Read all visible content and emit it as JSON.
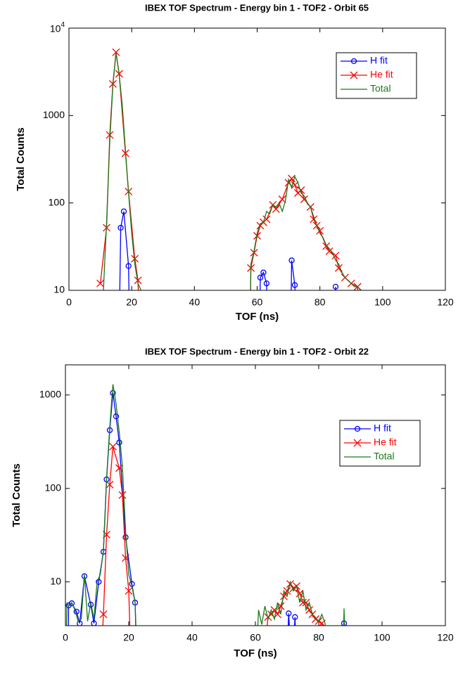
{
  "chart_data": [
    {
      "type": "line",
      "title": "IBEX TOF Spectrum - Energy bin 1 - TOF2 - Orbit 65",
      "x_label": "TOF (ns)",
      "y_label": "Total Counts",
      "log_y": true,
      "legend": "upper right",
      "xlim": [
        0,
        120
      ],
      "xticks": [
        0,
        20,
        40,
        60,
        80,
        100,
        120
      ],
      "ylim": [
        10,
        10000
      ],
      "yticks": [
        10,
        100,
        1000,
        {
          "value": 10000,
          "label": "10^4"
        }
      ],
      "series": [
        {
          "name": "H fit",
          "color": "#0000ff",
          "marker": "o",
          "x": [
            15.8,
            16.5,
            17.5,
            19,
            19.6,
            60.5,
            61,
            62,
            63,
            63.8,
            70.5,
            71,
            72,
            72.8,
            84.5,
            85,
            85.5
          ],
          "values": [
            1,
            52,
            80,
            19,
            1,
            1,
            14,
            16,
            12,
            1,
            1,
            22,
            11.5,
            1,
            1,
            11,
            1
          ]
        },
        {
          "name": "He fit",
          "color": "#ff0000",
          "marker": "x",
          "x": [
            10,
            12,
            13,
            14,
            15,
            16,
            18,
            19,
            21,
            22,
            23,
            57.5,
            58,
            59,
            60,
            61,
            62,
            63,
            65,
            66,
            68,
            70,
            71,
            72,
            73,
            74,
            75,
            77,
            78,
            79,
            80,
            82,
            83,
            85,
            86,
            88,
            90,
            92,
            93
          ],
          "values": [
            12,
            52,
            600,
            2300,
            5300,
            3000,
            370,
            135,
            23,
            13,
            1,
            1,
            18,
            27,
            42,
            55,
            60,
            65,
            95,
            85,
            110,
            170,
            190,
            160,
            130,
            140,
            110,
            90,
            65,
            55,
            48,
            32,
            28,
            25,
            18,
            14,
            12,
            11,
            1
          ]
        },
        {
          "name": "Total",
          "color": "#1a7a1a",
          "marker": "none",
          "x": [
            11,
            12,
            13,
            14,
            15,
            16,
            17,
            18,
            19,
            20,
            21,
            22,
            23,
            57.5,
            58,
            59,
            60,
            61,
            62,
            63,
            64,
            65,
            66,
            67,
            68,
            69,
            70,
            71,
            72,
            73,
            74,
            75,
            76,
            77,
            78,
            79,
            80,
            81,
            82,
            83,
            84,
            85,
            86,
            87,
            88,
            89,
            90,
            91,
            92,
            93,
            94
          ],
          "values": [
            10,
            60,
            500,
            2200,
            5200,
            3000,
            1300,
            400,
            130,
            45,
            20,
            12,
            10,
            1,
            20,
            28,
            45,
            58,
            60,
            80,
            75,
            95,
            90,
            100,
            80,
            105,
            185,
            150,
            200,
            170,
            130,
            120,
            100,
            90,
            70,
            55,
            45,
            40,
            33,
            30,
            27,
            22,
            20,
            16,
            14,
            13,
            12,
            11,
            11,
            10,
            1
          ]
        }
      ]
    },
    {
      "type": "line",
      "title": "IBEX TOF Spectrum - Energy bin 1 - TOF2 - Orbit 22",
      "x_label": "TOF (ns)",
      "y_label": "Total Counts",
      "log_y": true,
      "legend": "upper right",
      "xlim": [
        0,
        120
      ],
      "xticks": [
        0,
        20,
        40,
        60,
        80,
        100,
        120
      ],
      "ylim": [
        3.4,
        2100
      ],
      "yticks": [
        10,
        100,
        1000
      ],
      "series": [
        {
          "name": "H fit",
          "color": "#0000ff",
          "marker": "o",
          "x": [
            0.8,
            1,
            2,
            3.5,
            4.5,
            6,
            8,
            9,
            10.5,
            12,
            13,
            14,
            15,
            16,
            17,
            19,
            21,
            22,
            22.6,
            69.8,
            70.5,
            71.5,
            72.5,
            73,
            87,
            88,
            88.5
          ],
          "values": [
            1,
            5.6,
            5.9,
            4.8,
            3.6,
            11.5,
            5.7,
            3.6,
            10,
            21,
            125,
            420,
            1050,
            590,
            310,
            30,
            9.5,
            6,
            1,
            1,
            4.6,
            1,
            4.2,
            1,
            1,
            3.6,
            1
          ]
        },
        {
          "name": "He fit",
          "color": "#ff0000",
          "marker": "x",
          "x": [
            11,
            12,
            13,
            14,
            15,
            17,
            18,
            19,
            20,
            20.8,
            62,
            64,
            65,
            66,
            67,
            68,
            69,
            70,
            71,
            72,
            73,
            74,
            75,
            76,
            77,
            78,
            79,
            80,
            81,
            82
          ],
          "values": [
            1,
            4.5,
            32,
            110,
            280,
            165,
            85,
            18,
            8,
            1,
            1,
            4.2,
            4.5,
            5,
            4.5,
            5.5,
            7,
            8,
            9.5,
            8.5,
            9,
            7.5,
            6,
            6,
            5,
            4.5,
            4,
            3.8,
            3.6,
            1
          ]
        },
        {
          "name": "Total",
          "color": "#1a7a1a",
          "marker": "none",
          "x": [
            0,
            0.5,
            1,
            2,
            3,
            4,
            5,
            6,
            7,
            8,
            9,
            10,
            11,
            12,
            13,
            14,
            15,
            16,
            17,
            18,
            19,
            20,
            21,
            22,
            22.8,
            60,
            61,
            62,
            63,
            64,
            65,
            66,
            67,
            68,
            69,
            70,
            71,
            72,
            73,
            74,
            75,
            76,
            77,
            78,
            79,
            80,
            81,
            82,
            83,
            87.5,
            88,
            88.5
          ],
          "values": [
            1,
            6,
            5.5,
            6,
            5,
            3.8,
            4,
            12,
            3.8,
            6,
            4,
            10,
            12,
            22,
            130,
            450,
            1300,
            800,
            400,
            170,
            35,
            12,
            9,
            6,
            1,
            1,
            5,
            3.5,
            5.5,
            4,
            5,
            4,
            6,
            4.5,
            8,
            7,
            10,
            8,
            9,
            6,
            8,
            5,
            6,
            4.5,
            4,
            3.8,
            4.5,
            3.6,
            1,
            1,
            5.2,
            1
          ]
        }
      ]
    }
  ]
}
